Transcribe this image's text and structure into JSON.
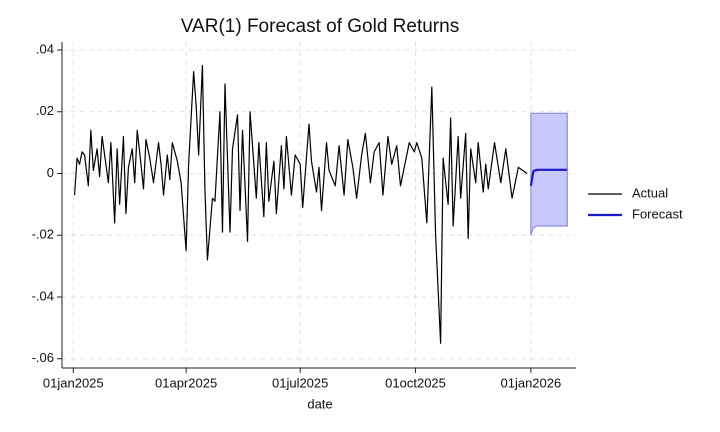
{
  "chart_data": {
    "type": "line",
    "title": "VAR(1) Forecast of Gold Returns",
    "x_label": "date",
    "xlim": [
      "2024-12-23",
      "2026-02-06"
    ],
    "xticks": [
      {
        "value": "2025-01-01",
        "label": "01jan2025"
      },
      {
        "value": "2025-04-01",
        "label": "01apr2025"
      },
      {
        "value": "2025-07-01",
        "label": "01jul2025"
      },
      {
        "value": "2025-10-01",
        "label": "01oct2025"
      },
      {
        "value": "2026-01-01",
        "label": "01jan2026"
      }
    ],
    "ylim": [
      -0.063,
      0.0426
    ],
    "yticks": [
      {
        "value": -0.06,
        "label": "-.06"
      },
      {
        "value": -0.04,
        "label": "-.04"
      },
      {
        "value": -0.02,
        "label": "-.02"
      },
      0,
      {
        "value": 0.02,
        "label": ".02"
      },
      {
        "value": 0.04,
        "label": ".04"
      }
    ],
    "grid": true,
    "legend": "right",
    "series": [
      {
        "name": "Actual",
        "color": "#000000",
        "x": [
          "2025-01-02",
          "2025-01-04",
          "2025-01-06",
          "2025-01-08",
          "2025-01-10",
          "2025-01-13",
          "2025-01-15",
          "2025-01-17",
          "2025-01-20",
          "2025-01-22",
          "2025-01-24",
          "2025-01-27",
          "2025-01-29",
          "2025-01-31",
          "2025-02-03",
          "2025-02-05",
          "2025-02-07",
          "2025-02-10",
          "2025-02-12",
          "2025-02-14",
          "2025-02-17",
          "2025-02-19",
          "2025-02-21",
          "2025-02-24",
          "2025-02-26",
          "2025-02-28",
          "2025-03-03",
          "2025-03-06",
          "2025-03-10",
          "2025-03-12",
          "2025-03-14",
          "2025-03-17",
          "2025-03-19",
          "2025-03-21",
          "2025-03-25",
          "2025-03-28",
          "2025-04-01",
          "2025-04-03",
          "2025-04-07",
          "2025-04-09",
          "2025-04-11",
          "2025-04-14",
          "2025-04-16",
          "2025-04-18",
          "2025-04-22",
          "2025-04-24",
          "2025-04-28",
          "2025-04-30",
          "2025-05-02",
          "2025-05-06",
          "2025-05-08",
          "2025-05-12",
          "2025-05-14",
          "2025-05-16",
          "2025-05-20",
          "2025-05-22",
          "2025-05-27",
          "2025-05-29",
          "2025-06-02",
          "2025-06-04",
          "2025-06-06",
          "2025-06-10",
          "2025-06-12",
          "2025-06-16",
          "2025-06-18",
          "2025-06-20",
          "2025-06-24",
          "2025-06-27",
          "2025-07-01",
          "2025-07-03",
          "2025-07-08",
          "2025-07-10",
          "2025-07-14",
          "2025-07-16",
          "2025-07-18",
          "2025-07-22",
          "2025-07-24",
          "2025-07-29",
          "2025-08-01",
          "2025-08-05",
          "2025-08-08",
          "2025-08-12",
          "2025-08-15",
          "2025-08-19",
          "2025-08-22",
          "2025-08-26",
          "2025-08-29",
          "2025-09-02",
          "2025-09-05",
          "2025-09-09",
          "2025-09-12",
          "2025-09-16",
          "2025-09-19",
          "2025-09-23",
          "2025-09-26",
          "2025-09-30",
          "2025-10-02",
          "2025-10-06",
          "2025-10-10",
          "2025-10-14",
          "2025-10-17",
          "2025-10-21",
          "2025-10-23",
          "2025-10-27",
          "2025-10-29",
          "2025-10-31",
          "2025-11-04",
          "2025-11-06",
          "2025-11-10",
          "2025-11-12",
          "2025-11-14",
          "2025-11-18",
          "2025-11-20",
          "2025-11-24",
          "2025-11-26",
          "2025-11-28",
          "2025-12-03",
          "2025-12-08",
          "2025-12-12",
          "2025-12-17",
          "2025-12-22",
          "2025-12-29"
        ],
        "values": [
          -0.007,
          0.005,
          0.003,
          0.007,
          0.006,
          -0.004,
          0.014,
          0.001,
          0.008,
          -0.001,
          0.012,
          0.003,
          -0.003,
          0.01,
          -0.016,
          0.008,
          -0.01,
          0.012,
          -0.013,
          0.002,
          0.008,
          -0.003,
          0.014,
          0.003,
          -0.005,
          0.011,
          0.005,
          -0.003,
          0.01,
          0.003,
          -0.007,
          0.006,
          -0.002,
          0.01,
          0.004,
          -0.003,
          -0.025,
          0.003,
          0.033,
          0.022,
          0.006,
          0.035,
          -0.005,
          -0.028,
          -0.008,
          -0.009,
          0.02,
          -0.019,
          0.029,
          -0.019,
          0.008,
          0.019,
          -0.012,
          0.014,
          -0.022,
          0.02,
          -0.008,
          0.01,
          -0.014,
          0.01,
          -0.009,
          0.004,
          -0.013,
          0.009,
          -0.005,
          0.012,
          -0.007,
          0.006,
          0.003,
          -0.011,
          0.016,
          0.004,
          -0.006,
          0.002,
          -0.012,
          0.01,
          0.001,
          -0.004,
          0.009,
          -0.007,
          0.011,
          0.002,
          -0.008,
          0.006,
          0.013,
          -0.003,
          0.007,
          0.01,
          -0.007,
          0.012,
          0.003,
          0.009,
          -0.004,
          0.004,
          0.01,
          0.007,
          0.01,
          0.005,
          -0.016,
          0.028,
          -0.02,
          -0.055,
          0.005,
          -0.01,
          0.018,
          -0.017,
          0.012,
          -0.008,
          0.013,
          -0.021,
          0.008,
          -0.003,
          0.01,
          -0.006,
          0.003,
          -0.005,
          0.01,
          -0.003,
          0.008,
          -0.008,
          0.002,
          0.0
        ]
      },
      {
        "name": "Forecast",
        "color": "#1a1acc",
        "band_color": "#c8c8ff",
        "band_edge": "#8c8ce6",
        "x": [
          "2026-01-01",
          "2026-01-03",
          "2026-01-06",
          "2026-01-10",
          "2026-01-15",
          "2026-01-20",
          "2026-01-25",
          "2026-01-30"
        ],
        "values": [
          -0.004,
          0.0008,
          0.0012,
          0.0012,
          0.0012,
          0.0012,
          0.0012,
          0.0012
        ],
        "lower": [
          -0.02,
          -0.0175,
          -0.017,
          -0.017,
          -0.017,
          -0.017,
          -0.017,
          -0.017
        ],
        "upper": [
          0.0195,
          0.0195,
          0.0195,
          0.0195,
          0.0195,
          0.0195,
          0.0195,
          0.0195
        ]
      }
    ]
  }
}
